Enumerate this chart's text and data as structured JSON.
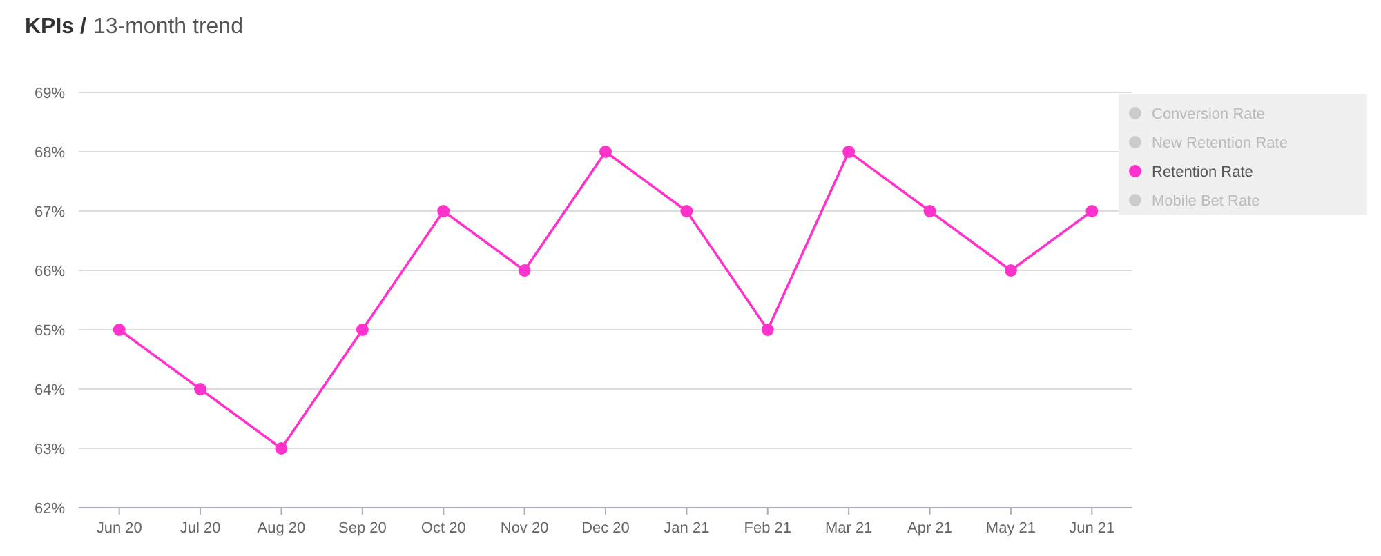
{
  "chart_data": {
    "type": "line",
    "title": "KPIs /",
    "subtitle": "13-month trend",
    "categories": [
      "Jun 20",
      "Jul 20",
      "Aug 20",
      "Sep 20",
      "Oct 20",
      "Nov 20",
      "Dec 20",
      "Jan 21",
      "Feb 21",
      "Mar 21",
      "Apr 21",
      "May 21",
      "Jun 21"
    ],
    "series": [
      {
        "name": "Conversion Rate",
        "color": "#cccccc",
        "values": [
          null,
          null,
          null,
          null,
          null,
          null,
          null,
          null,
          null,
          null,
          null,
          null,
          null
        ]
      },
      {
        "name": "New Retention Rate",
        "color": "#cccccc",
        "values": [
          null,
          null,
          null,
          null,
          null,
          null,
          null,
          null,
          null,
          null,
          null,
          null,
          null
        ]
      },
      {
        "name": "Retention Rate",
        "color": "#ff33cc",
        "values": [
          65,
          64,
          63,
          65,
          67,
          66,
          68,
          67,
          65,
          68,
          67,
          66,
          67
        ]
      },
      {
        "name": "Mobile Bet Rate",
        "color": "#cccccc",
        "values": [
          null,
          null,
          null,
          null,
          null,
          null,
          null,
          null,
          null,
          null,
          null,
          null,
          null
        ]
      }
    ],
    "ylim": [
      62,
      69
    ],
    "yticks": [
      {
        "value": 62,
        "label": "62%"
      },
      {
        "value": 63,
        "label": "63%"
      },
      {
        "value": 64,
        "label": "64%"
      },
      {
        "value": 65,
        "label": "65%"
      },
      {
        "value": 66,
        "label": "66%"
      },
      {
        "value": 67,
        "label": "67%"
      },
      {
        "value": 68,
        "label": "68%"
      },
      {
        "value": 69,
        "label": "69%"
      }
    ],
    "grid": "y",
    "legend": "top right",
    "marker": "circle",
    "line_style": "solid"
  }
}
